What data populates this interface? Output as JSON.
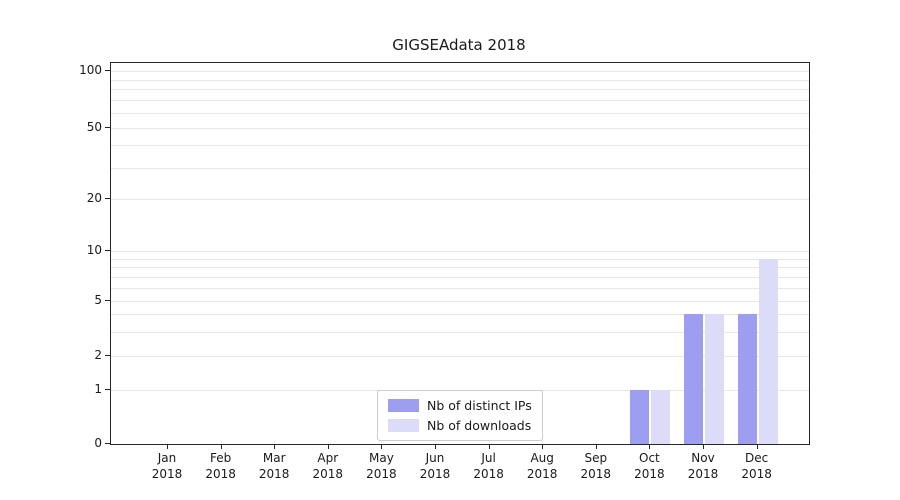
{
  "title": "GIGSEAdata 2018",
  "chart_data": {
    "type": "bar",
    "title": "GIGSEAdata 2018",
    "xlabel": "",
    "ylabel": "",
    "categories": [
      "Jan 2018",
      "Feb 2018",
      "Mar 2018",
      "Apr 2018",
      "May 2018",
      "Jun 2018",
      "Jul 2018",
      "Aug 2018",
      "Sep 2018",
      "Oct 2018",
      "Nov 2018",
      "Dec 2018"
    ],
    "series": [
      {
        "name": "Nb of distinct IPs",
        "color": "#9e9ef0",
        "values": [
          0,
          0,
          0,
          0,
          0,
          0,
          0,
          0,
          0,
          1,
          4,
          4
        ]
      },
      {
        "name": "Nb of downloads",
        "color": "#dcdcf9",
        "values": [
          0,
          0,
          0,
          0,
          0,
          0,
          0,
          0,
          0,
          1,
          4,
          9
        ]
      }
    ],
    "y_ticks": [
      0,
      1,
      2,
      5,
      10,
      20,
      50,
      100
    ],
    "grid_values": [
      1,
      2,
      3,
      4,
      5,
      6,
      7,
      8,
      9,
      10,
      20,
      30,
      40,
      50,
      60,
      70,
      80,
      90,
      100
    ],
    "scale": "symlog",
    "ylim": [
      0,
      100
    ],
    "grid": "horizontal minor+major",
    "legend_position": "lower center inside plot",
    "grid_color": "#e7e7e7",
    "axis_color": "#262626"
  }
}
